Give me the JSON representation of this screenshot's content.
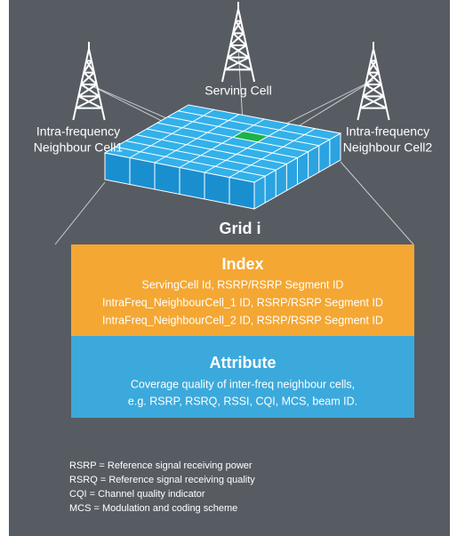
{
  "serving_cell": "Serving Cell",
  "neighbour_cell_1": [
    "Intra-frequency",
    "Neighbour Cell1"
  ],
  "neighbour_cell_2": [
    "Intra-frequency",
    "Neighbour Cell2"
  ],
  "grid_label": "Grid i",
  "index": {
    "title": "Index",
    "lines": [
      "ServingCell Id, RSRP/RSRP Segment ID",
      "IntraFreq_NeighbourCell_1 ID, RSRP/RSRP Segment ID",
      "IntraFreq_NeighbourCell_2 ID, RSRP/RSRP Segment ID"
    ]
  },
  "attribute": {
    "title": "Attribute",
    "lines": [
      "Coverage quality of inter-freq neighbour cells,",
      "e.g. RSRP, RSRQ, RSSI, CQI, MCS, beam ID."
    ]
  },
  "footnotes": [
    "RSRP = Reference signal receiving power",
    "RSRQ = Reference signal receiving quality",
    "CQI = Channel quality indicator",
    "MCS = Modulation and coding scheme"
  ]
}
